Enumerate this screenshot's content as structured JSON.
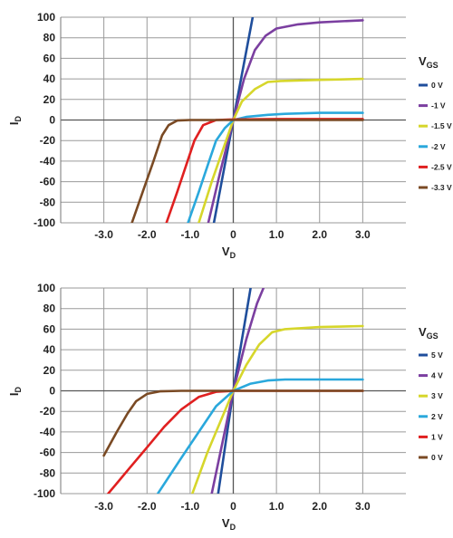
{
  "chart_data": [
    {
      "type": "line",
      "xlabel": {
        "main": "V",
        "sub": "D"
      },
      "ylabel": {
        "main": "I",
        "sub": "D"
      },
      "xlim": [
        -4.0,
        4.0
      ],
      "ylim": [
        -100,
        100
      ],
      "xticks": [
        "-3.0",
        "-2.0",
        "-1.0",
        "0",
        "1.0",
        "2.0",
        "3.0"
      ],
      "xtick_values": [
        -3,
        -2,
        -1,
        0,
        1,
        2,
        3
      ],
      "yticks": [
        "100",
        "80",
        "60",
        "40",
        "20",
        "0",
        "-20",
        "-40",
        "-60",
        "-80",
        "-100"
      ],
      "ytick_values": [
        100,
        80,
        60,
        40,
        20,
        0,
        -20,
        -40,
        -60,
        -80,
        -100
      ],
      "grid": true,
      "legend": {
        "title": "V",
        "title_sub": "GS",
        "placement": "right"
      },
      "series": [
        {
          "name": "0 V",
          "color": "#1f4e9c",
          "points": [
            [
              -0.45,
              -100
            ],
            [
              0,
              0
            ],
            [
              0.45,
              100
            ]
          ]
        },
        {
          "name": "-1 V",
          "color": "#7b3fa0",
          "points": [
            [
              -0.58,
              -100
            ],
            [
              -0.3,
              -50
            ],
            [
              0,
              0
            ],
            [
              0.25,
              40
            ],
            [
              0.5,
              68
            ],
            [
              0.75,
              82
            ],
            [
              1.0,
              89
            ],
            [
              1.5,
              93
            ],
            [
              2.0,
              95
            ],
            [
              2.5,
              96
            ],
            [
              3.0,
              97
            ]
          ]
        },
        {
          "name": "-1.5 V",
          "color": "#d6d62b",
          "points": [
            [
              -0.8,
              -100
            ],
            [
              -0.5,
              -60
            ],
            [
              -0.25,
              -30
            ],
            [
              0,
              0
            ],
            [
              0.2,
              18
            ],
            [
              0.5,
              30
            ],
            [
              0.8,
              37
            ],
            [
              1.1,
              38
            ],
            [
              2.0,
              39
            ],
            [
              3.0,
              40
            ]
          ]
        },
        {
          "name": "-2 V",
          "color": "#2aa8dc",
          "points": [
            [
              -1.05,
              -100
            ],
            [
              -0.8,
              -70
            ],
            [
              -0.6,
              -45
            ],
            [
              -0.4,
              -20
            ],
            [
              -0.2,
              -8
            ],
            [
              0,
              0
            ],
            [
              0.3,
              3
            ],
            [
              0.8,
              5
            ],
            [
              1.2,
              6
            ],
            [
              2.0,
              7
            ],
            [
              3.0,
              7
            ]
          ]
        },
        {
          "name": "-2.5 V",
          "color": "#e02020",
          "points": [
            [
              -1.55,
              -100
            ],
            [
              -1.3,
              -70
            ],
            [
              -1.1,
              -45
            ],
            [
              -0.9,
              -20
            ],
            [
              -0.7,
              -5
            ],
            [
              -0.4,
              0
            ],
            [
              0,
              0.5
            ],
            [
              1.0,
              1
            ],
            [
              3.0,
              1
            ]
          ]
        },
        {
          "name": "-3.3 V",
          "color": "#7a4a24",
          "points": [
            [
              -2.35,
              -100
            ],
            [
              -2.1,
              -70
            ],
            [
              -1.85,
              -40
            ],
            [
              -1.65,
              -15
            ],
            [
              -1.5,
              -5
            ],
            [
              -1.3,
              -0.5
            ],
            [
              -1.0,
              0
            ],
            [
              0,
              0
            ],
            [
              3.0,
              0
            ]
          ]
        }
      ]
    },
    {
      "type": "line",
      "xlabel": {
        "main": "V",
        "sub": "D"
      },
      "ylabel": {
        "main": "I",
        "sub": "D"
      },
      "xlim": [
        -4.0,
        4.0
      ],
      "ylim": [
        -100,
        100
      ],
      "xticks": [
        "-3.0",
        "-2.0",
        "-1.0",
        "0",
        "1.0",
        "2.0",
        "3.0"
      ],
      "xtick_values": [
        -3,
        -2,
        -1,
        0,
        1,
        2,
        3
      ],
      "yticks": [
        "100",
        "80",
        "60",
        "40",
        "20",
        "0",
        "-20",
        "-40",
        "-60",
        "-80",
        "-100"
      ],
      "ytick_values": [
        100,
        80,
        60,
        40,
        20,
        0,
        -20,
        -40,
        -60,
        -80,
        -100
      ],
      "grid": true,
      "legend": {
        "title": "V",
        "title_sub": "GS",
        "placement": "right"
      },
      "series": [
        {
          "name": "5 V",
          "color": "#1f4e9c",
          "points": [
            [
              -0.35,
              -100
            ],
            [
              0,
              0
            ],
            [
              0.4,
              100
            ]
          ]
        },
        {
          "name": "4 V",
          "color": "#7b3fa0",
          "points": [
            [
              -0.5,
              -100
            ],
            [
              -0.25,
              -50
            ],
            [
              0,
              0
            ],
            [
              0.3,
              50
            ],
            [
              0.55,
              85
            ],
            [
              0.7,
              100
            ]
          ]
        },
        {
          "name": "3 V",
          "color": "#d6d62b",
          "points": [
            [
              -0.95,
              -100
            ],
            [
              -0.6,
              -60
            ],
            [
              -0.3,
              -30
            ],
            [
              0,
              0
            ],
            [
              0.3,
              25
            ],
            [
              0.6,
              45
            ],
            [
              0.9,
              57
            ],
            [
              1.2,
              60
            ],
            [
              2.0,
              62
            ],
            [
              3.0,
              63
            ]
          ]
        },
        {
          "name": "2 V",
          "color": "#2aa8dc",
          "points": [
            [
              -1.75,
              -100
            ],
            [
              -1.2,
              -65
            ],
            [
              -0.8,
              -40
            ],
            [
              -0.4,
              -15
            ],
            [
              0,
              0
            ],
            [
              0.4,
              7
            ],
            [
              0.8,
              10
            ],
            [
              1.2,
              11
            ],
            [
              2.0,
              11
            ],
            [
              3.0,
              11
            ]
          ]
        },
        {
          "name": "1 V",
          "color": "#e02020",
          "points": [
            [
              -2.9,
              -100
            ],
            [
              -2.4,
              -75
            ],
            [
              -2.0,
              -55
            ],
            [
              -1.6,
              -35
            ],
            [
              -1.2,
              -18
            ],
            [
              -0.8,
              -6
            ],
            [
              -0.4,
              -1
            ],
            [
              0,
              0
            ],
            [
              1.0,
              0
            ],
            [
              3.0,
              0
            ]
          ]
        },
        {
          "name": "0 V",
          "color": "#7a4a24",
          "points": [
            [
              -3.0,
              -63
            ],
            [
              -2.7,
              -40
            ],
            [
              -2.45,
              -22
            ],
            [
              -2.25,
              -10
            ],
            [
              -2.0,
              -3
            ],
            [
              -1.7,
              -0.5
            ],
            [
              -1.2,
              0
            ],
            [
              0,
              0
            ],
            [
              3.0,
              0
            ]
          ]
        }
      ]
    }
  ]
}
